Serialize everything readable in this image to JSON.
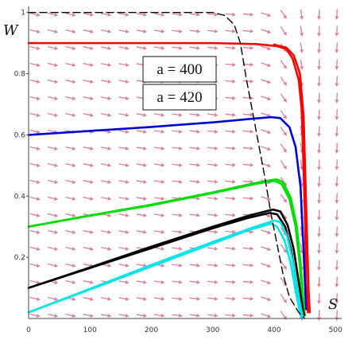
{
  "chart_data": {
    "type": "line",
    "xlabel": "S",
    "ylabel": "W",
    "xlim": [
      0,
      510
    ],
    "ylim": [
      0,
      1.02
    ],
    "x_ticks": [
      "0",
      "100",
      "200",
      "300",
      "400",
      "500"
    ],
    "y_ticks": [
      "0.2",
      "0.4",
      "0.6",
      "0.8",
      "1"
    ],
    "annotations": [
      "a = 400",
      "a = 420"
    ],
    "grid": false,
    "direction_field": {
      "color": "#d97fa0"
    },
    "series": [
      {
        "color": "#ff0000",
        "style": "solid",
        "x": [
          0,
          100,
          200,
          300,
          370,
          405,
          420,
          430,
          440,
          445,
          450,
          452,
          455
        ],
        "y": [
          0.9,
          0.9,
          0.9,
          0.9,
          0.897,
          0.89,
          0.88,
          0.85,
          0.78,
          0.68,
          0.35,
          0.12,
          0.02
        ]
      },
      {
        "color": "#ff0000",
        "style": "solid",
        "x": [
          400,
          420,
          432,
          442,
          448,
          452,
          456,
          458
        ],
        "y": [
          0.895,
          0.885,
          0.86,
          0.8,
          0.66,
          0.38,
          0.1,
          0.02
        ]
      },
      {
        "color": "#0000dd",
        "style": "solid",
        "x": [
          0,
          100,
          200,
          300,
          360,
          395,
          410,
          425,
          435,
          443,
          448,
          452
        ],
        "y": [
          0.6,
          0.613,
          0.626,
          0.641,
          0.652,
          0.658,
          0.655,
          0.625,
          0.56,
          0.43,
          0.22,
          0.03
        ]
      },
      {
        "color": "#00dd00",
        "style": "solid",
        "x": [
          0,
          100,
          200,
          300,
          370,
          400,
          412,
          425,
          435,
          442,
          446,
          448
        ],
        "y": [
          0.3,
          0.336,
          0.37,
          0.41,
          0.44,
          0.45,
          0.44,
          0.39,
          0.3,
          0.17,
          0.05,
          0.01
        ]
      },
      {
        "color": "#00dd00",
        "style": "solid",
        "x": [
          0,
          100,
          200,
          300,
          370,
          403,
          414,
          427,
          437,
          444,
          448,
          450
        ],
        "y": [
          0.3,
          0.337,
          0.372,
          0.412,
          0.443,
          0.455,
          0.447,
          0.395,
          0.3,
          0.16,
          0.05,
          0.01
        ]
      },
      {
        "color": "#000000",
        "style": "solid",
        "x": [
          0,
          100,
          200,
          300,
          360,
          393,
          405,
          418,
          428,
          436,
          442,
          445
        ],
        "y": [
          0.1,
          0.165,
          0.23,
          0.295,
          0.33,
          0.345,
          0.34,
          0.3,
          0.22,
          0.12,
          0.04,
          0.01
        ]
      },
      {
        "color": "#000000",
        "style": "solid",
        "x": [
          0,
          100,
          200,
          300,
          362,
          398,
          410,
          422,
          432,
          440,
          446,
          449
        ],
        "y": [
          0.1,
          0.167,
          0.235,
          0.3,
          0.338,
          0.356,
          0.35,
          0.305,
          0.225,
          0.12,
          0.04,
          0.01
        ]
      },
      {
        "color": "#00e5e5",
        "style": "solid",
        "x": [
          0,
          100,
          200,
          300,
          360,
          395,
          405,
          417,
          427,
          435,
          441,
          444
        ],
        "y": [
          0.02,
          0.095,
          0.17,
          0.245,
          0.29,
          0.31,
          0.3,
          0.255,
          0.18,
          0.09,
          0.03,
          0.005
        ]
      },
      {
        "color": "#00e5e5",
        "style": "solid",
        "x": [
          0,
          100,
          200,
          300,
          362,
          400,
          410,
          421,
          430,
          438,
          444,
          447
        ],
        "y": [
          0.02,
          0.097,
          0.175,
          0.25,
          0.295,
          0.32,
          0.315,
          0.27,
          0.19,
          0.095,
          0.03,
          0.005
        ]
      },
      {
        "color": "#000000",
        "style": "dashed",
        "x": [
          0,
          200,
          300,
          320,
          335,
          345,
          355,
          370,
          385,
          395,
          405,
          415,
          425,
          440,
          450
        ],
        "y": [
          1.0,
          1.0,
          1.0,
          0.99,
          0.96,
          0.9,
          0.78,
          0.62,
          0.46,
          0.34,
          0.24,
          0.14,
          0.07,
          0.02,
          0.0
        ]
      }
    ]
  }
}
